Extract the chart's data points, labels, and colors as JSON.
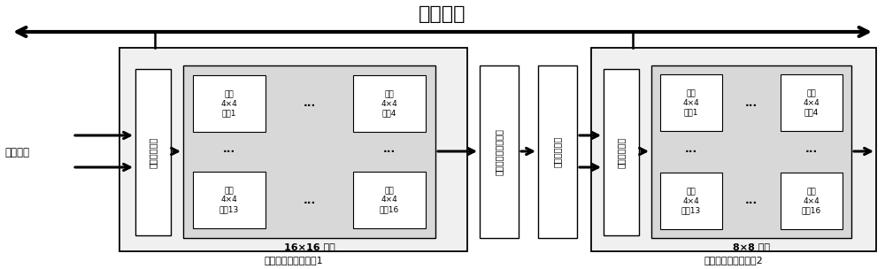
{
  "title": "配置总线",
  "bg_color": "#ffffff",
  "label_signal": "图像信号",
  "label_reg1": "第一寄存器组",
  "label_reg2": "第一寄存器组",
  "label_conv_outer1": "16×16 卷积",
  "label_conv_outer2": "8×8 卷积",
  "label_module1": "可重构分离卷积模块1",
  "label_module2": "可重构分离卷积模块2",
  "label_nonlinear": "非线性激活函数单元",
  "label_adder": "乘累加器单元",
  "conv_cells": [
    "第一\n4×4\n卷积1",
    "第一\n4×4\n卷积4",
    "第一\n4×4\n卷积13",
    "第一\n4×4\n卷积16"
  ],
  "title_fontsize": 16,
  "label_fontsize": 8,
  "cell_fontsize": 6.5,
  "rot_fontsize": 7.0
}
